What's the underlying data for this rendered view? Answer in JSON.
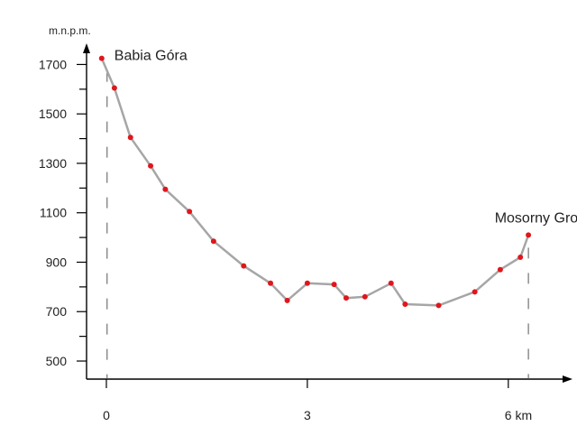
{
  "chart_data": {
    "type": "line",
    "title": "",
    "ylabel": "m.n.p.m.",
    "xlabel": "",
    "ylim": [
      430,
      1790
    ],
    "xlim": [
      -0.2,
      7.0
    ],
    "y_ticks": [
      1700,
      1500,
      1300,
      1100,
      900,
      700,
      500
    ],
    "y_tick_labels": [
      "1700",
      "1500",
      "1300",
      "1100",
      "900",
      "700",
      "500"
    ],
    "x_ticks": [
      0,
      3,
      6
    ],
    "x_tick_labels": [
      "0",
      "3",
      "6 km"
    ],
    "grid": false,
    "series": [
      {
        "points": [
          {
            "x": -0.07,
            "y": 1725
          },
          {
            "x": 0.12,
            "y": 1605
          },
          {
            "x": 0.36,
            "y": 1405
          },
          {
            "x": 0.66,
            "y": 1290
          },
          {
            "x": 0.88,
            "y": 1195
          },
          {
            "x": 1.24,
            "y": 1105
          },
          {
            "x": 1.6,
            "y": 985
          },
          {
            "x": 2.05,
            "y": 885
          },
          {
            "x": 2.45,
            "y": 815
          },
          {
            "x": 2.7,
            "y": 745
          },
          {
            "x": 3.0,
            "y": 815
          },
          {
            "x": 3.4,
            "y": 810
          },
          {
            "x": 3.58,
            "y": 755
          },
          {
            "x": 3.86,
            "y": 760
          },
          {
            "x": 4.25,
            "y": 815
          },
          {
            "x": 4.46,
            "y": 730
          },
          {
            "x": 4.96,
            "y": 725
          },
          {
            "x": 5.5,
            "y": 780
          },
          {
            "x": 5.88,
            "y": 870
          },
          {
            "x": 6.18,
            "y": 920
          },
          {
            "x": 6.3,
            "y": 1010
          }
        ]
      }
    ],
    "annotations": [
      {
        "text": "Babia Góra",
        "x": -0.07,
        "y": 1725
      },
      {
        "text": "Mosorny Groń",
        "x": 6.3,
        "y": 1010
      }
    ],
    "colors": {
      "line": "#a6a6a6",
      "marker": "#e0161c",
      "axis": "#000000",
      "dash": "#555555"
    }
  }
}
